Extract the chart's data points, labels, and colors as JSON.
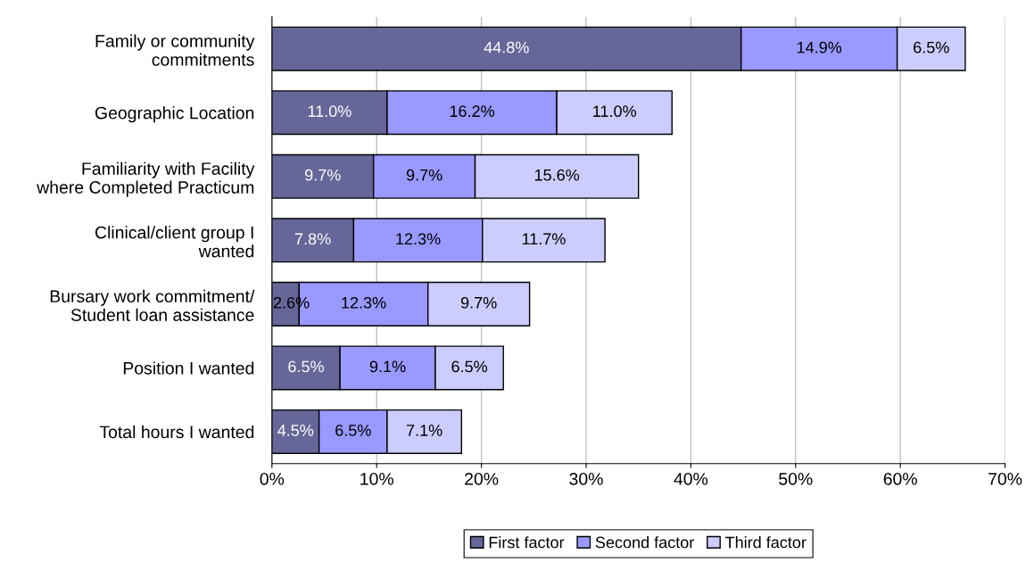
{
  "chart_data": {
    "type": "bar",
    "orientation": "horizontal",
    "stacked": true,
    "categories": [
      "Family or community\ncommitments",
      "Geographic Location",
      "Familiarity with Facility\nwhere Completed Practicum",
      "Clinical/client group I\nwanted",
      "Bursary work commitment/\nStudent loan assistance",
      "Position I wanted",
      "Total hours I wanted"
    ],
    "series": [
      {
        "name": "First factor",
        "color": "#666699",
        "values": [
          44.8,
          11.0,
          9.7,
          7.8,
          2.6,
          6.5,
          4.5
        ],
        "value_labels": [
          "44.8%",
          "11.0%",
          "9.7%",
          "7.8%",
          "2.6%",
          "6.5%",
          "4.5%"
        ]
      },
      {
        "name": "Second factor",
        "color": "#9999ff",
        "values": [
          14.9,
          16.2,
          9.7,
          12.3,
          12.3,
          9.1,
          6.5
        ],
        "value_labels": [
          "14.9%",
          "16.2%",
          "9.7%",
          "12.3%",
          "12.3%",
          "9.1%",
          "6.5%"
        ]
      },
      {
        "name": "Third factor",
        "color": "#ccccff",
        "values": [
          6.5,
          11.0,
          15.6,
          11.7,
          9.7,
          6.5,
          7.1
        ],
        "value_labels": [
          "6.5%",
          "11.0%",
          "15.6%",
          "11.7%",
          "9.7%",
          "6.5%",
          "7.1%"
        ]
      }
    ],
    "xlim": [
      0,
      70
    ],
    "xticks": [
      {
        "value": 0,
        "label": "0%"
      },
      {
        "value": 10,
        "label": "10%"
      },
      {
        "value": 20,
        "label": "20%"
      },
      {
        "value": 30,
        "label": "30%"
      },
      {
        "value": 40,
        "label": "40%"
      },
      {
        "value": 50,
        "label": "50%"
      },
      {
        "value": 60,
        "label": "60%"
      },
      {
        "value": 70,
        "label": "70%"
      }
    ],
    "grid": "x",
    "legend": "bottom"
  }
}
